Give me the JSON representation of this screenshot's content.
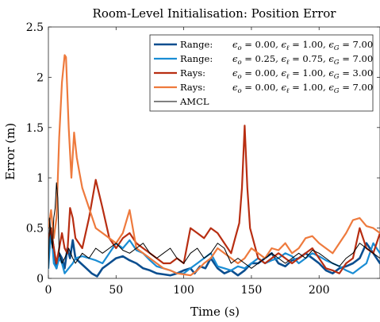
{
  "chart_data": {
    "type": "line",
    "title": "Room-Level Initialisation: Position Error",
    "xlabel": "Time (s)",
    "ylabel": "Error (m)",
    "xlim": [
      0,
      245
    ],
    "ylim": [
      0,
      2.5
    ],
    "xticks": [
      0,
      50,
      100,
      150,
      200
    ],
    "yticks": [
      0,
      0.5,
      1,
      1.5,
      2,
      2.5
    ],
    "xtick_labels": [
      "0",
      "50",
      "100",
      "150",
      "200"
    ],
    "ytick_labels": [
      "0",
      "0.5",
      "1",
      "1.5",
      "2",
      "2.5"
    ],
    "grid": false,
    "legend_position": "top-right",
    "series": [
      {
        "name": "Range: εo = 0.00, εℓ = 1.00, εG = 7.00",
        "legend_parts": {
          "prefix": "Range:",
          "o": "0.00",
          "l": "1.00",
          "G": "7.00"
        },
        "color": "#0b4e8f",
        "width": 2.6,
        "x": [
          0,
          2,
          4,
          6,
          8,
          10,
          12,
          14,
          16,
          18,
          20,
          24,
          28,
          32,
          36,
          40,
          45,
          50,
          55,
          60,
          65,
          70,
          75,
          80,
          85,
          90,
          95,
          100,
          105,
          108,
          112,
          116,
          120,
          125,
          130,
          135,
          140,
          145,
          150,
          155,
          160,
          165,
          170,
          175,
          180,
          185,
          190,
          195,
          200,
          205,
          210,
          215,
          220,
          225,
          230,
          235,
          240,
          245
        ],
        "y": [
          0.2,
          0.45,
          0.3,
          0.1,
          0.25,
          0.2,
          0.1,
          0.3,
          0.2,
          0.38,
          0.2,
          0.15,
          0.1,
          0.05,
          0.02,
          0.1,
          0.15,
          0.2,
          0.22,
          0.18,
          0.15,
          0.1,
          0.08,
          0.05,
          0.04,
          0.03,
          0.05,
          0.08,
          0.1,
          0.05,
          0.12,
          0.1,
          0.2,
          0.1,
          0.05,
          0.08,
          0.03,
          0.08,
          0.15,
          0.15,
          0.2,
          0.25,
          0.15,
          0.12,
          0.18,
          0.2,
          0.25,
          0.2,
          0.15,
          0.08,
          0.05,
          0.1,
          0.12,
          0.15,
          0.2,
          0.35,
          0.25,
          0.15
        ]
      },
      {
        "name": "Range: εo = 0.25, εℓ = 0.75, εG = 7.00",
        "legend_parts": {
          "prefix": "Range:",
          "o": "0.25",
          "l": "0.75",
          "G": "7.00"
        },
        "color": "#1a8dd4",
        "width": 2.2,
        "x": [
          0,
          2,
          4,
          6,
          8,
          10,
          12,
          15,
          18,
          20,
          25,
          30,
          35,
          40,
          45,
          50,
          55,
          60,
          65,
          70,
          75,
          80,
          85,
          90,
          95,
          100,
          105,
          110,
          115,
          120,
          125,
          130,
          135,
          140,
          145,
          150,
          155,
          160,
          165,
          170,
          175,
          180,
          185,
          190,
          195,
          200,
          205,
          210,
          215,
          220,
          225,
          230,
          235,
          240,
          245
        ],
        "y": [
          0.1,
          0.5,
          0.15,
          0.1,
          0.2,
          0.15,
          0.05,
          0.1,
          0.15,
          0.2,
          0.22,
          0.2,
          0.18,
          0.15,
          0.25,
          0.35,
          0.3,
          0.38,
          0.28,
          0.25,
          0.18,
          0.12,
          0.1,
          0.08,
          0.05,
          0.05,
          0.1,
          0.15,
          0.2,
          0.25,
          0.12,
          0.1,
          0.08,
          0.12,
          0.1,
          0.15,
          0.2,
          0.15,
          0.18,
          0.2,
          0.25,
          0.22,
          0.15,
          0.2,
          0.25,
          0.22,
          0.18,
          0.15,
          0.12,
          0.08,
          0.05,
          0.1,
          0.15,
          0.35,
          0.25
        ]
      },
      {
        "name": "Rays: εo = 0.00, εℓ = 1.00, εG = 3.00",
        "legend_parts": {
          "prefix": "Rays:",
          "o": "0.00",
          "l": "1.00",
          "G": "3.00"
        },
        "color": "#b82e12",
        "width": 2.2,
        "x": [
          0,
          2,
          4,
          6,
          8,
          10,
          12,
          14,
          16,
          18,
          20,
          25,
          30,
          35,
          40,
          45,
          50,
          55,
          60,
          65,
          70,
          75,
          80,
          85,
          90,
          95,
          100,
          105,
          110,
          115,
          120,
          125,
          130,
          135,
          138,
          141,
          143,
          145,
          147,
          149,
          152,
          155,
          160,
          165,
          170,
          175,
          180,
          185,
          190,
          195,
          200,
          205,
          210,
          215,
          220,
          225,
          230,
          235,
          240,
          245
        ],
        "y": [
          0.4,
          0.5,
          0.3,
          0.15,
          0.3,
          0.45,
          0.3,
          0.25,
          0.7,
          0.6,
          0.4,
          0.3,
          0.6,
          0.98,
          0.7,
          0.4,
          0.3,
          0.4,
          0.45,
          0.35,
          0.3,
          0.25,
          0.2,
          0.15,
          0.15,
          0.2,
          0.15,
          0.5,
          0.45,
          0.4,
          0.5,
          0.45,
          0.35,
          0.25,
          0.4,
          0.55,
          0.9,
          1.52,
          0.9,
          0.5,
          0.35,
          0.2,
          0.15,
          0.2,
          0.25,
          0.2,
          0.15,
          0.2,
          0.25,
          0.3,
          0.2,
          0.1,
          0.08,
          0.05,
          0.15,
          0.2,
          0.5,
          0.3,
          0.25,
          0.45
        ]
      },
      {
        "name": "Rays: εo = 0.00, εℓ = 1.00, εG = 7.00",
        "legend_parts": {
          "prefix": "Rays:",
          "o": "0.00",
          "l": "1.00",
          "G": "7.00"
        },
        "color": "#ee7a3d",
        "width": 2.2,
        "x": [
          0,
          2,
          4,
          6,
          8,
          10,
          12,
          13,
          15,
          17,
          19,
          21,
          23,
          25,
          30,
          35,
          40,
          45,
          50,
          55,
          60,
          65,
          70,
          75,
          80,
          85,
          90,
          95,
          100,
          105,
          110,
          115,
          120,
          125,
          130,
          135,
          140,
          145,
          150,
          155,
          160,
          165,
          170,
          175,
          180,
          185,
          190,
          195,
          200,
          205,
          210,
          215,
          220,
          225,
          230,
          235,
          240,
          245
        ],
        "y": [
          0.5,
          0.68,
          0.4,
          0.6,
          1.4,
          1.95,
          2.22,
          2.2,
          1.5,
          1.0,
          1.45,
          1.2,
          1.05,
          0.9,
          0.7,
          0.5,
          0.45,
          0.4,
          0.35,
          0.45,
          0.68,
          0.3,
          0.25,
          0.2,
          0.15,
          0.1,
          0.08,
          0.05,
          0.04,
          0.03,
          0.08,
          0.15,
          0.2,
          0.3,
          0.25,
          0.2,
          0.15,
          0.2,
          0.3,
          0.25,
          0.2,
          0.3,
          0.28,
          0.35,
          0.25,
          0.3,
          0.4,
          0.42,
          0.35,
          0.3,
          0.25,
          0.35,
          0.45,
          0.58,
          0.6,
          0.52,
          0.5,
          0.45
        ]
      },
      {
        "name": "AMCL",
        "legend_parts": {
          "prefix": "AMCL",
          "o": "",
          "l": "",
          "G": ""
        },
        "color": "#000000",
        "width": 1.0,
        "x": [
          0,
          1,
          2,
          3,
          4,
          5,
          6,
          7,
          8,
          10,
          12,
          15,
          18,
          20,
          25,
          30,
          35,
          40,
          45,
          50,
          55,
          60,
          65,
          70,
          75,
          80,
          85,
          90,
          95,
          100,
          105,
          110,
          115,
          120,
          125,
          130,
          135,
          140,
          145,
          150,
          155,
          160,
          165,
          170,
          175,
          180,
          185,
          190,
          195,
          200,
          205,
          210,
          215,
          220,
          225,
          230,
          235,
          240,
          245
        ],
        "y": [
          0.1,
          0.6,
          0.4,
          0.3,
          0.6,
          0.7,
          0.95,
          0.8,
          0.25,
          0.15,
          0.2,
          0.3,
          0.2,
          0.15,
          0.25,
          0.2,
          0.3,
          0.25,
          0.3,
          0.35,
          0.28,
          0.25,
          0.3,
          0.35,
          0.25,
          0.2,
          0.25,
          0.3,
          0.2,
          0.15,
          0.25,
          0.3,
          0.2,
          0.25,
          0.35,
          0.3,
          0.15,
          0.2,
          0.15,
          0.1,
          0.15,
          0.2,
          0.25,
          0.2,
          0.15,
          0.2,
          0.25,
          0.2,
          0.28,
          0.25,
          0.2,
          0.15,
          0.12,
          0.2,
          0.25,
          0.35,
          0.3,
          0.25,
          0.2
        ]
      }
    ]
  }
}
